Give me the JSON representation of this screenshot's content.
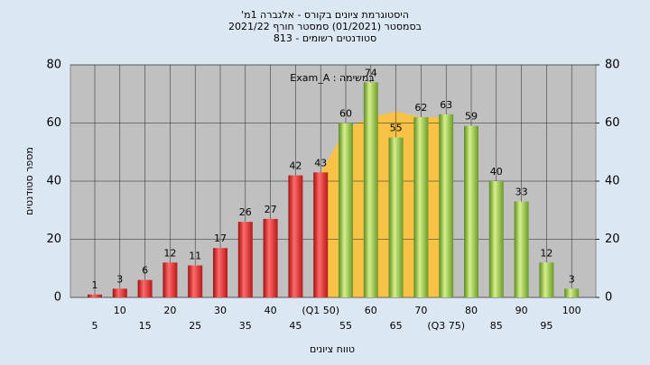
{
  "chart_data": {
    "type": "bar",
    "title": "היסטוגרמת ציונים בקורס - אלגברה 1מ'",
    "subtitle": "בסמסטר  (01/2021)  סמסטר חורף  2021/22",
    "subtitle2": "סטודנטים רשומים - 813",
    "annotation": "במשימה : Exam_A",
    "x_label": "טווח ציונים",
    "y_label": "מספר סטודנטים",
    "categories": [
      "5",
      "10",
      "15",
      "20",
      "25",
      "30",
      "35",
      "40",
      "45",
      "(Q1 50)",
      "55",
      "60",
      "65",
      "70",
      "(Q3 75)",
      "80",
      "85",
      "90",
      "95",
      "100"
    ],
    "series": [
      {
        "color": "#e02020",
        "values": [
          1,
          3,
          6,
          12,
          11,
          17,
          26,
          27,
          42,
          43,
          null,
          null,
          null,
          null,
          null,
          null,
          null,
          null,
          null,
          null
        ]
      },
      {
        "color": "#8cc63f",
        "values": [
          null,
          null,
          null,
          null,
          null,
          null,
          null,
          null,
          null,
          null,
          60,
          74,
          55,
          62,
          63,
          59,
          40,
          33,
          12,
          3
        ]
      }
    ],
    "area": {
      "color": "#f7c245",
      "values": [
        null,
        null,
        null,
        null,
        null,
        null,
        null,
        null,
        null,
        43,
        58,
        62,
        64,
        62,
        62,
        null,
        null,
        null,
        null,
        null
      ]
    },
    "ylim": [
      0,
      80
    ],
    "yticks": [
      0,
      20,
      40,
      60,
      80
    ],
    "y2lim": [
      0,
      80
    ],
    "y2ticks": [
      0,
      20,
      40,
      60,
      80
    ],
    "grid": true
  }
}
